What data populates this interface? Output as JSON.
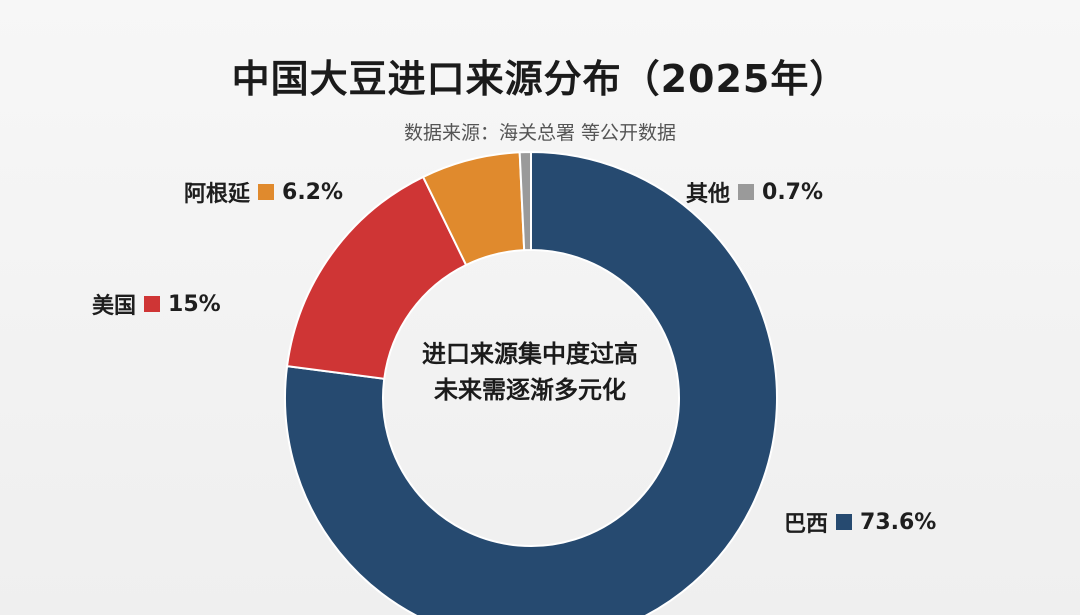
{
  "title": "中国大豆进口来源分布（2025年）",
  "subtitle": "数据来源：海关总署 等公开数据",
  "center_note": {
    "line1": "进口来源集中度过高",
    "line2": "未来需逐渐多元化"
  },
  "labels": {
    "brazil": {
      "name": "巴西",
      "value": "73.6%",
      "color": "#264a70"
    },
    "usa": {
      "name": "美国",
      "value": "15%",
      "color": "#cf3535"
    },
    "argentina": {
      "name": "阿根延",
      "value": "6.2%",
      "color": "#e08a2d"
    },
    "other": {
      "name": "其他",
      "value": "0.7%",
      "color": "#9a9a9a"
    }
  },
  "chart_data": {
    "type": "pie",
    "donut": true,
    "title": "中国大豆进口来源分布（2025年）",
    "subtitle": "数据来源：海关总署 等公开数据",
    "categories": [
      "巴西",
      "美国",
      "阿根延",
      "其他"
    ],
    "values": [
      73.6,
      15,
      6.2,
      0.7
    ],
    "colors": [
      "#264a70",
      "#cf3535",
      "#e08a2d",
      "#9a9a9a"
    ],
    "legend": "labels-beside-slices"
  }
}
